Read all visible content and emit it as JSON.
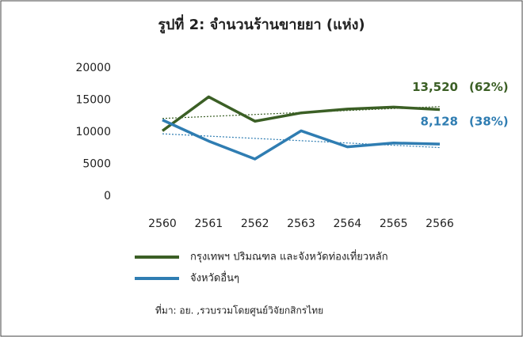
{
  "chart_data": {
    "type": "line",
    "title": "รูปที่ 2: จำนวนร้านขายยา (แห่ง)",
    "categories": [
      "2560",
      "2561",
      "2562",
      "2563",
      "2564",
      "2565",
      "2566"
    ],
    "series": [
      {
        "name": "กรุงเทพฯ ปริมณฑล และจังหวัดท่องเที่ยวหลัก",
        "color": "#3b5f25",
        "values": [
          10200,
          15500,
          11700,
          13000,
          13600,
          13900,
          13520
        ],
        "value_labels": [
          null,
          null,
          null,
          null,
          null,
          null,
          "13,520"
        ],
        "share_label": "(62%)"
      },
      {
        "name": "จังหวัดอื่นๆ",
        "color": "#2f7db2",
        "values": [
          11900,
          8600,
          5800,
          10200,
          7700,
          8300,
          8128
        ],
        "value_labels": [
          null,
          null,
          null,
          null,
          null,
          null,
          "8,128"
        ],
        "share_label": "(38%)"
      }
    ],
    "ylim": [
      0,
      20000
    ],
    "yticks": [
      0,
      5000,
      10000,
      15000,
      20000
    ],
    "trendline": true,
    "source": "ที่มา: อย. ,รวบรวมโดยศูนย์วิจัยกสิกรไทย"
  }
}
